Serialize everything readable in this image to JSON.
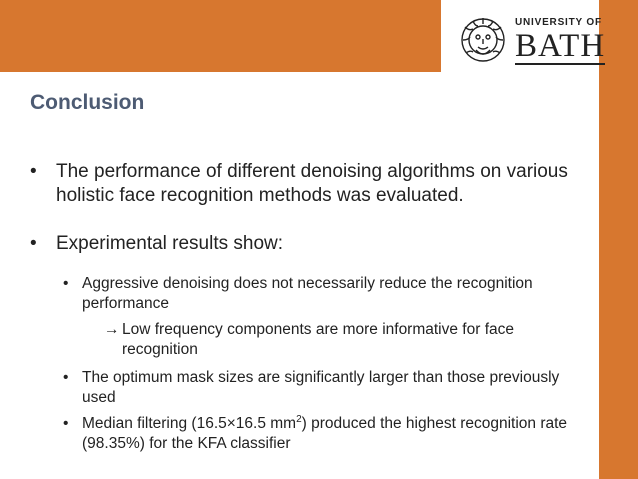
{
  "logo": {
    "university_of": "UNIVERSITY OF",
    "bath": "BATH"
  },
  "slide": {
    "title": "Conclusion",
    "bullet1": "The performance of different denoising algorithms on various holistic face recognition methods was evaluated.",
    "bullet2": "Experimental results show:",
    "sub1": "Aggressive denoising does not necessarily reduce the recognition performance",
    "sub1_arrow": "→",
    "sub1_note": "Low frequency components are more informative for face recognition",
    "sub2": "The optimum mask sizes are significantly larger than those previously used",
    "sub3_pre": "Median filtering (16.5×16.5 mm",
    "sub3_sup": "2",
    "sub3_post": ") produced the highest recognition rate (98.35%) for the KFA classifier"
  },
  "colors": {
    "accent": "#d7772f",
    "title": "#4d5b73",
    "text": "#222222"
  },
  "icons": {
    "bullet": "•",
    "logo_emblem": "gorgon-head-icon"
  }
}
